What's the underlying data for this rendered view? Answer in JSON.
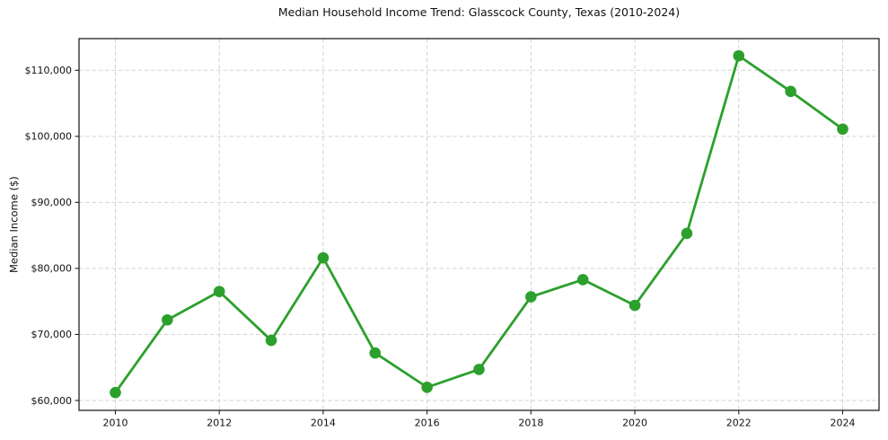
{
  "chart_data": {
    "type": "line",
    "title": "Median Household Income Trend: Glasscock County, Texas (2010-2024)",
    "xlabel": "",
    "ylabel": "Median Income ($)",
    "x": [
      2010,
      2011,
      2012,
      2013,
      2014,
      2015,
      2016,
      2017,
      2018,
      2019,
      2020,
      2021,
      2022,
      2023,
      2024
    ],
    "values": [
      61200,
      72200,
      76500,
      69100,
      81600,
      67200,
      62000,
      64700,
      75700,
      78300,
      74400,
      85300,
      112200,
      106800,
      101100
    ],
    "x_tick_values": [
      2010,
      2012,
      2014,
      2016,
      2018,
      2020,
      2022,
      2024
    ],
    "x_tick_labels": [
      "2010",
      "2012",
      "2014",
      "2016",
      "2018",
      "2020",
      "2022",
      "2024"
    ],
    "y_tick_values": [
      60000,
      70000,
      80000,
      90000,
      100000,
      110000
    ],
    "y_tick_labels": [
      "$60,000",
      "$70,000",
      "$80,000",
      "$90,000",
      "$100,000",
      "$110,000"
    ],
    "xlim": [
      2009.3,
      2024.7
    ],
    "ylim": [
      58500,
      114800
    ],
    "grid": true,
    "grid_style": "dashed",
    "legend": false,
    "line_color": "#2ca02c",
    "marker": "circle",
    "background": "#ffffff"
  }
}
